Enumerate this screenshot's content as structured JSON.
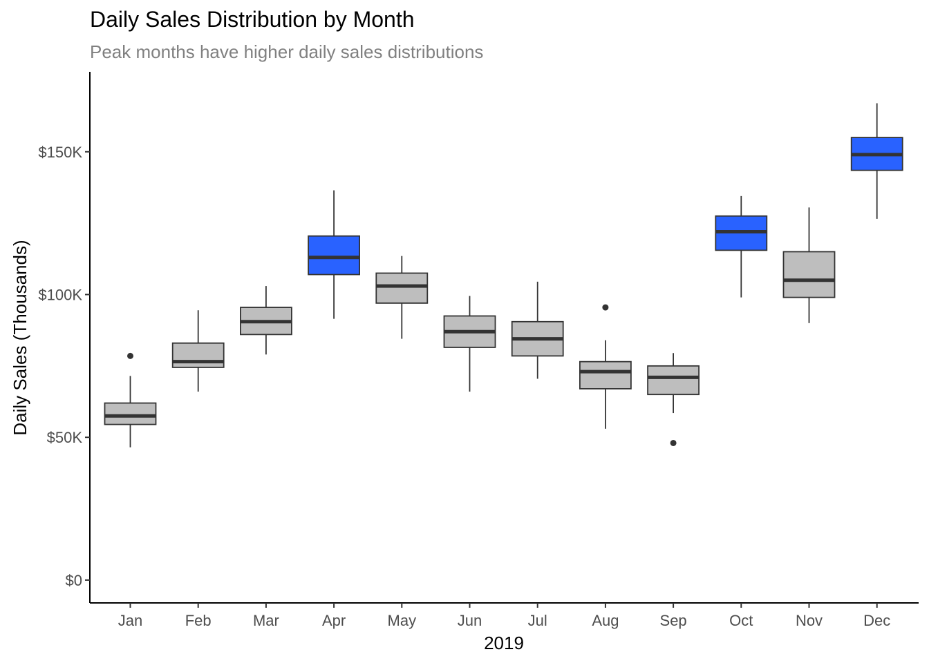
{
  "chart_data": {
    "type": "boxplot",
    "title": "Daily Sales Distribution by Month",
    "subtitle": "Peak months have higher daily sales distributions",
    "xlabel": "2019",
    "ylabel": "Daily Sales (Thousands)",
    "ylim": [
      -8,
      178
    ],
    "yticks": [
      {
        "value": 0,
        "label": "$0"
      },
      {
        "value": 50,
        "label": "$50K"
      },
      {
        "value": 100,
        "label": "$100K"
      },
      {
        "value": 150,
        "label": "$150K"
      }
    ],
    "grid": false,
    "colors": {
      "normal": "#bebebe",
      "peak": "#2962ff",
      "line": "#333333"
    },
    "categories": [
      "Jan",
      "Feb",
      "Mar",
      "Apr",
      "May",
      "Jun",
      "Jul",
      "Aug",
      "Sep",
      "Oct",
      "Nov",
      "Dec"
    ],
    "boxes": [
      {
        "month": "Jan",
        "min": 46.5,
        "q1": 54.5,
        "median": 57.5,
        "q3": 62,
        "max": 71.5,
        "outliers": [
          78.5
        ],
        "peak": false
      },
      {
        "month": "Feb",
        "min": 66,
        "q1": 74.5,
        "median": 76.5,
        "q3": 83,
        "max": 94.5,
        "outliers": [],
        "peak": false
      },
      {
        "month": "Mar",
        "min": 79,
        "q1": 86,
        "median": 90.5,
        "q3": 95.5,
        "max": 103,
        "outliers": [],
        "peak": false
      },
      {
        "month": "Apr",
        "min": 91.5,
        "q1": 107,
        "median": 113,
        "q3": 120.5,
        "max": 136.5,
        "outliers": [],
        "peak": true
      },
      {
        "month": "May",
        "min": 84.5,
        "q1": 97,
        "median": 103,
        "q3": 107.5,
        "max": 113.5,
        "outliers": [],
        "peak": false
      },
      {
        "month": "Jun",
        "min": 66,
        "q1": 81.5,
        "median": 87,
        "q3": 92.5,
        "max": 99.5,
        "outliers": [],
        "peak": false
      },
      {
        "month": "Jul",
        "min": 70.5,
        "q1": 78.5,
        "median": 84.5,
        "q3": 90.5,
        "max": 104.5,
        "outliers": [],
        "peak": false
      },
      {
        "month": "Aug",
        "min": 53,
        "q1": 67,
        "median": 73,
        "q3": 76.5,
        "max": 84,
        "outliers": [
          95.5
        ],
        "peak": false
      },
      {
        "month": "Sep",
        "min": 58.5,
        "q1": 65,
        "median": 71,
        "q3": 75,
        "max": 79.5,
        "outliers": [
          48
        ],
        "peak": false
      },
      {
        "month": "Oct",
        "min": 99,
        "q1": 115.5,
        "median": 122,
        "q3": 127.5,
        "max": 134.5,
        "outliers": [],
        "peak": true
      },
      {
        "month": "Nov",
        "min": 90,
        "q1": 99,
        "median": 105,
        "q3": 115,
        "max": 130.5,
        "outliers": [],
        "peak": false
      },
      {
        "month": "Dec",
        "min": 126.5,
        "q1": 143.5,
        "median": 149,
        "q3": 155,
        "max": 167,
        "outliers": [],
        "peak": true
      }
    ]
  }
}
